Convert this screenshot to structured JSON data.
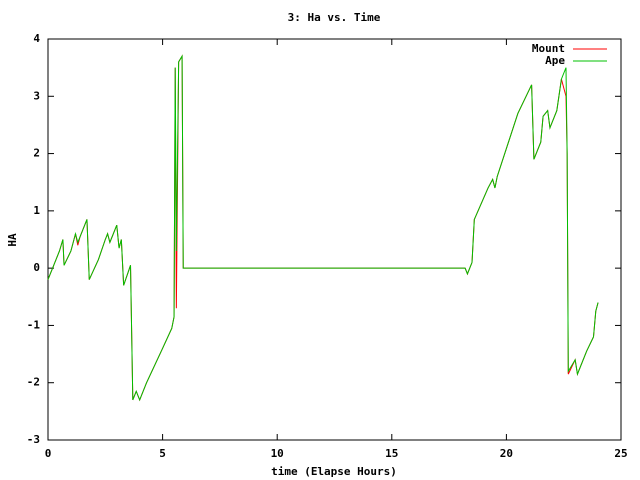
{
  "chart_data": {
    "type": "line",
    "title": "3: Ha vs. Time",
    "x_label": "time (Elapse Hours)",
    "y_label": "HA",
    "x": [
      0,
      0.3,
      0.5,
      0.65,
      0.7,
      1.0,
      1.2,
      1.3,
      1.4,
      1.7,
      1.8,
      2.2,
      2.5,
      2.6,
      2.7,
      3.0,
      3.1,
      3.2,
      3.3,
      3.6,
      3.7,
      3.85,
      4.0,
      4.3,
      5.0,
      5.4,
      5.5,
      5.55,
      5.6,
      5.7,
      5.85,
      5.9,
      10,
      18.2,
      18.3,
      18.5,
      18.6,
      19.2,
      19.4,
      19.5,
      19.6,
      20.5,
      21.1,
      21.2,
      21.5,
      21.6,
      21.8,
      21.9,
      22.2,
      22.4,
      22.6,
      22.65,
      22.7,
      23.0,
      23.1,
      23.5,
      23.8,
      23.9,
      24.0
    ],
    "series": [
      {
        "name": "Mount",
        "color": "#ff0000",
        "values": [
          -0.2,
          0.1,
          0.3,
          0.5,
          0.05,
          0.3,
          0.6,
          0.4,
          0.55,
          0.85,
          -0.2,
          0.15,
          0.5,
          0.6,
          0.45,
          0.75,
          0.35,
          0.5,
          -0.3,
          0.05,
          -2.3,
          -2.15,
          -2.3,
          -2.0,
          -1.4,
          -1.05,
          -0.85,
          3.5,
          -0.7,
          3.6,
          3.7,
          0.0,
          0.0,
          0.0,
          -0.1,
          0.1,
          0.85,
          1.4,
          1.55,
          1.4,
          1.6,
          2.7,
          3.2,
          1.9,
          2.2,
          2.65,
          2.75,
          2.45,
          2.75,
          3.3,
          3.0,
          2.0,
          -1.85,
          -1.6,
          -1.85,
          -1.45,
          -1.2,
          -0.75,
          -0.6
        ]
      },
      {
        "name": "Ape",
        "color": "#00c000",
        "values": [
          -0.2,
          0.1,
          0.3,
          0.5,
          0.05,
          0.3,
          0.6,
          0.45,
          0.55,
          0.85,
          -0.2,
          0.15,
          0.5,
          0.6,
          0.45,
          0.75,
          0.35,
          0.5,
          -0.3,
          0.05,
          -2.3,
          -2.15,
          -2.3,
          -2.0,
          -1.4,
          -1.05,
          -0.85,
          3.5,
          0.3,
          3.6,
          3.7,
          0.0,
          0.0,
          0.0,
          -0.1,
          0.1,
          0.85,
          1.4,
          1.55,
          1.4,
          1.6,
          2.7,
          3.2,
          1.9,
          2.2,
          2.65,
          2.75,
          2.45,
          2.75,
          3.3,
          3.5,
          2.0,
          -1.8,
          -1.6,
          -1.85,
          -1.45,
          -1.2,
          -0.75,
          -0.6
        ]
      }
    ],
    "xlim": [
      0,
      25
    ],
    "xticks": [
      0,
      5,
      10,
      15,
      20,
      25
    ],
    "ylim": [
      -3,
      4
    ],
    "yticks": [
      -3,
      -2,
      -1,
      0,
      1,
      2,
      3,
      4
    ],
    "grid": false,
    "legend": "top-right"
  }
}
